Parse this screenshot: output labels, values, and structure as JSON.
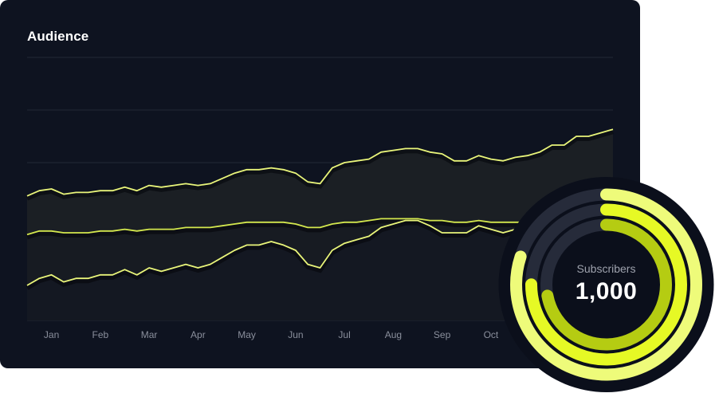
{
  "card": {
    "title": "Audience"
  },
  "colors": {
    "card_bg": "#0e1320",
    "line": "#e9f57a",
    "line_mid": "#d4e84e",
    "grid": "#222836",
    "ring_outer": "#eefb7a",
    "ring_middle": "#e6f925",
    "ring_inner": "#b5cc12",
    "ring_track": "#262b3a",
    "ring_bg": "#0b0f1b"
  },
  "chart_data": {
    "type": "area",
    "title": "Audience",
    "xlabel": "",
    "ylabel": "",
    "grid": true,
    "categories": [
      "Jan",
      "Feb",
      "Mar",
      "Apr",
      "May",
      "Jun",
      "Jul",
      "Aug",
      "Sep",
      "Oct"
    ],
    "x": [
      0,
      1,
      2,
      3,
      4,
      5,
      6,
      7,
      8,
      9,
      10,
      11,
      12,
      13,
      14,
      15,
      16,
      17,
      18,
      19,
      20,
      21,
      22,
      23,
      24,
      25,
      26,
      27,
      28,
      29,
      30,
      31,
      32,
      33,
      34,
      35,
      36,
      37,
      38,
      39,
      40,
      41,
      42,
      43,
      44,
      45,
      46,
      47,
      48
    ],
    "series": [
      {
        "values": [
          61,
          64,
          65,
          62,
          63,
          63,
          64,
          64,
          66,
          64,
          67,
          66,
          67,
          68,
          67,
          68,
          71,
          74,
          76,
          76,
          77,
          76,
          74,
          69,
          68,
          77,
          80,
          81,
          82,
          86,
          87,
          88,
          88,
          86,
          85,
          81,
          81,
          84,
          82,
          81,
          83,
          84,
          86,
          90,
          90,
          95,
          95,
          97,
          99
        ]
      },
      {
        "values": [
          39,
          41,
          41,
          40,
          40,
          40,
          41,
          41,
          42,
          41,
          42,
          42,
          42,
          43,
          43,
          43,
          44,
          45,
          46,
          46,
          46,
          46,
          45,
          43,
          43,
          45,
          46,
          46,
          47,
          48,
          48,
          48,
          48,
          47,
          47,
          46,
          46,
          47,
          46,
          46,
          46,
          46,
          47,
          48,
          48,
          48,
          48,
          48,
          48
        ]
      },
      {
        "values": [
          10,
          14,
          16,
          12,
          14,
          14,
          16,
          16,
          19,
          16,
          20,
          18,
          20,
          22,
          20,
          22,
          26,
          30,
          33,
          33,
          35,
          33,
          30,
          22,
          20,
          30,
          34,
          36,
          38,
          43,
          45,
          47,
          47,
          44,
          40,
          40,
          40,
          44,
          42,
          40,
          42,
          44,
          46,
          50,
          50,
          54,
          54,
          56,
          58
        ]
      }
    ],
    "ylim": [
      -10,
      140
    ]
  },
  "ring": {
    "label": "Subscribers",
    "value": "1,000",
    "rings": [
      {
        "fraction": 0.8
      },
      {
        "fraction": 0.75
      },
      {
        "fraction": 0.72
      }
    ]
  }
}
